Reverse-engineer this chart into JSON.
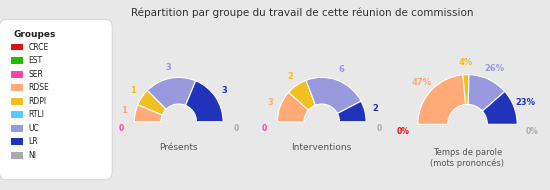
{
  "title": "Répartition par groupe du travail de cette réunion de commission",
  "bg_color": "#d8d8d8",
  "panel_color": "#e8e8e8",
  "groups": [
    "CRCE",
    "EST",
    "SER",
    "RDSE",
    "RDPI",
    "RTLI",
    "UC",
    "LR",
    "NI"
  ],
  "colors": [
    "#dd1111",
    "#22bb00",
    "#ff44aa",
    "#ffaa77",
    "#f0c020",
    "#55ccff",
    "#9999dd",
    "#2233bb",
    "#aaaaaa"
  ],
  "presences": [
    0,
    0,
    0,
    1,
    1,
    0,
    3,
    3,
    0
  ],
  "interventions": [
    0,
    0,
    0,
    3,
    2,
    0,
    6,
    2,
    0
  ],
  "temps_pct": [
    0,
    0,
    0,
    47,
    4,
    0,
    26,
    23,
    0
  ],
  "chart_titles": [
    "Présents",
    "Interventions",
    "Temps de parole\n(mots prononcés)"
  ],
  "legend_title": "Groupes",
  "zero_colors_counts": [
    "#ff44aa",
    "#aaaaaa"
  ],
  "zero_colors_pct": [
    "#dd1111",
    "#aaaaaa"
  ]
}
